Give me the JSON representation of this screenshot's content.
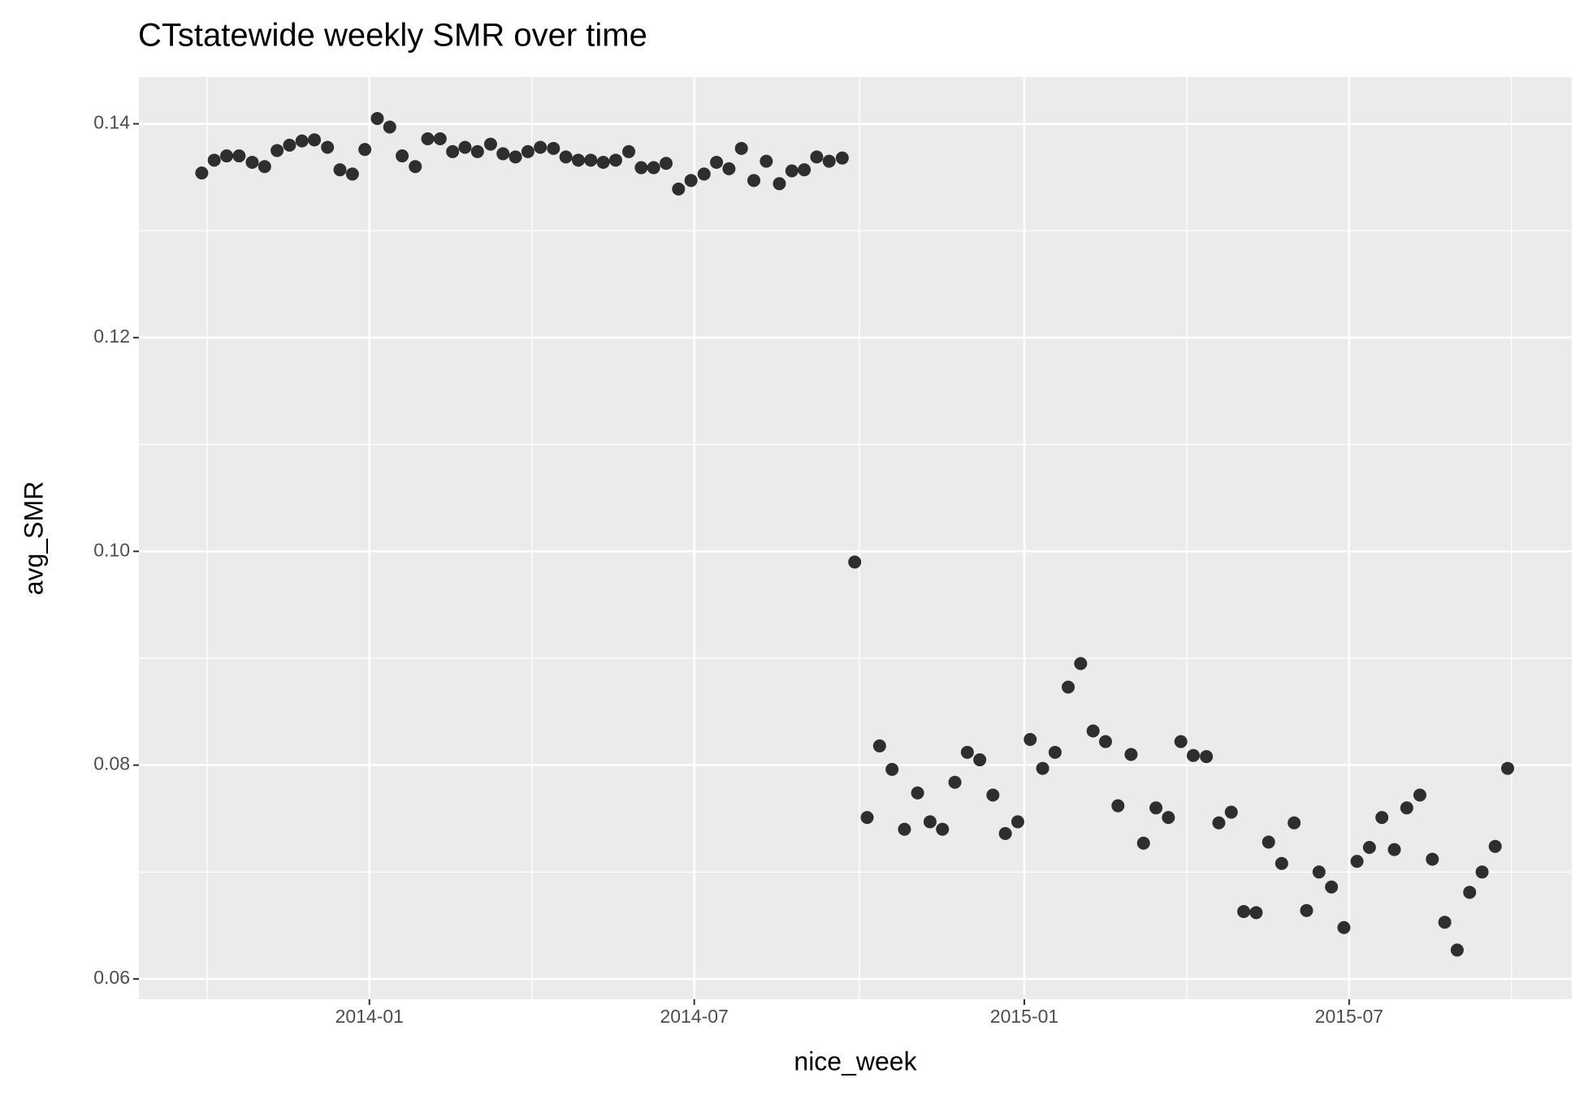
{
  "chart_data": {
    "type": "scatter",
    "title": "CTstatewide weekly SMR over time",
    "x_label": "nice_week",
    "y_label": "avg_SMR",
    "color": "#1a1a1a",
    "grid": true,
    "xlim": [
      2013.648,
      2015.836
    ],
    "ylim": [
      0.0581,
      0.14437
    ],
    "xticks": [
      {
        "value": 2014.0,
        "label": "2014-01"
      },
      {
        "value": 2014.496,
        "label": "2014-07"
      },
      {
        "value": 2015.0,
        "label": "2015-01"
      },
      {
        "value": 2015.496,
        "label": "2015-07"
      }
    ],
    "yticks": [
      0.06,
      0.08,
      {
        "value": 0.1,
        "label": "0.10"
      },
      0.12,
      0.14
    ],
    "x": [
      2013.744,
      2013.763,
      2013.782,
      2013.801,
      2013.821,
      2013.84,
      2013.859,
      2013.878,
      2013.897,
      2013.916,
      2013.936,
      2013.955,
      2013.974,
      2013.993,
      2014.012,
      2014.031,
      2014.05,
      2014.07,
      2014.089,
      2014.108,
      2014.127,
      2014.146,
      2014.165,
      2014.185,
      2014.204,
      2014.223,
      2014.242,
      2014.261,
      2014.281,
      2014.3,
      2014.319,
      2014.338,
      2014.357,
      2014.376,
      2014.396,
      2014.415,
      2014.434,
      2014.453,
      2014.472,
      2014.491,
      2014.511,
      2014.53,
      2014.549,
      2014.568,
      2014.587,
      2014.606,
      2014.626,
      2014.645,
      2014.664,
      2014.683,
      2014.702,
      2014.722,
      2014.741,
      2014.76,
      2014.779,
      2014.798,
      2014.817,
      2014.837,
      2014.856,
      2014.875,
      2014.894,
      2014.913,
      2014.932,
      2014.952,
      2014.971,
      2014.99,
      2015.009,
      2015.028,
      2015.047,
      2015.067,
      2015.086,
      2015.105,
      2015.124,
      2015.143,
      2015.163,
      2015.182,
      2015.201,
      2015.22,
      2015.239,
      2015.258,
      2015.278,
      2015.297,
      2015.316,
      2015.335,
      2015.354,
      2015.373,
      2015.393,
      2015.412,
      2015.431,
      2015.45,
      2015.469,
      2015.488,
      2015.508,
      2015.527,
      2015.546,
      2015.565,
      2015.584,
      2015.604,
      2015.623,
      2015.642,
      2015.661,
      2015.68,
      2015.699,
      2015.719,
      2015.738
    ],
    "values": [
      0.1354,
      0.1366,
      0.137,
      0.137,
      0.1364,
      0.136,
      0.1375,
      0.138,
      0.1384,
      0.1385,
      0.1378,
      0.1357,
      0.1353,
      0.1376,
      0.1405,
      0.1397,
      0.137,
      0.136,
      0.1386,
      0.1386,
      0.1374,
      0.1378,
      0.1374,
      0.1381,
      0.1372,
      0.1369,
      0.1374,
      0.1378,
      0.1377,
      0.1369,
      0.1366,
      0.1366,
      0.1364,
      0.1366,
      0.1374,
      0.1359,
      0.1359,
      0.1363,
      0.1339,
      0.1347,
      0.1353,
      0.1364,
      0.1358,
      0.1377,
      0.1347,
      0.1365,
      0.1344,
      0.1356,
      0.1357,
      0.1369,
      0.1365,
      0.1368,
      0.099,
      0.0751,
      0.0818,
      0.0796,
      0.074,
      0.0774,
      0.0747,
      0.074,
      0.0784,
      0.0812,
      0.0805,
      0.0772,
      0.0736,
      0.0747,
      0.0824,
      0.0797,
      0.0812,
      0.0873,
      0.0895,
      0.0832,
      0.0822,
      0.0762,
      0.081,
      0.0727,
      0.076,
      0.0751,
      0.0822,
      0.0809,
      0.0808,
      0.0746,
      0.0756,
      0.0663,
      0.0662,
      0.0728,
      0.0708,
      0.0746,
      0.0664,
      0.07,
      0.0686,
      0.0648,
      0.071,
      0.0723,
      0.0751,
      0.0721,
      0.076,
      0.0772,
      0.0712,
      0.0653,
      0.0627,
      0.0681,
      0.07,
      0.0724,
      0.0797
    ]
  }
}
